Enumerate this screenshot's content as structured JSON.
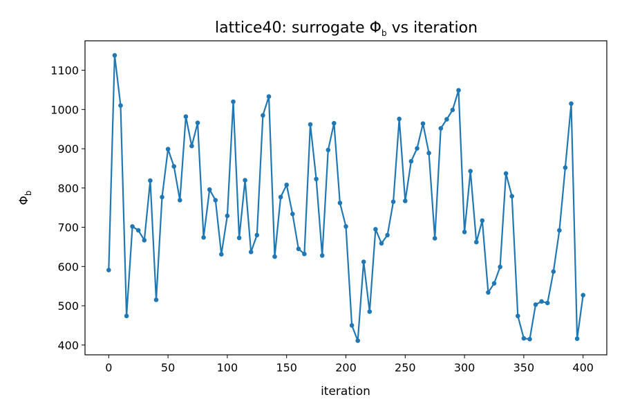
{
  "chart_data": {
    "type": "line",
    "title": {
      "prefix": "lattice40: surrogate ",
      "symbol": "Φ",
      "subscript": "b",
      "suffix": " vs iteration"
    },
    "xlabel": "iteration",
    "ylabel": {
      "symbol": "Φ",
      "subscript": "b"
    },
    "xlim": [
      -20,
      420
    ],
    "ylim": [
      375,
      1175
    ],
    "xticks": [
      0,
      50,
      100,
      150,
      200,
      250,
      300,
      350,
      400
    ],
    "yticks": [
      400,
      500,
      600,
      700,
      800,
      900,
      1000,
      1100
    ],
    "grid": false,
    "line_color": "#1f77b4",
    "marker": "circle",
    "x": [
      0,
      5,
      10,
      15,
      20,
      25,
      30,
      35,
      40,
      45,
      50,
      55,
      60,
      65,
      70,
      75,
      80,
      85,
      90,
      95,
      100,
      105,
      110,
      115,
      120,
      125,
      130,
      135,
      140,
      145,
      150,
      155,
      160,
      165,
      170,
      175,
      180,
      185,
      190,
      195,
      200,
      205,
      210,
      215,
      220,
      225,
      230,
      235,
      240,
      245,
      250,
      255,
      260,
      265,
      270,
      275,
      280,
      285,
      290,
      295,
      300,
      305,
      310,
      315,
      320,
      325,
      330,
      335,
      340,
      345,
      350,
      355,
      360,
      365,
      370,
      375,
      380,
      385,
      390,
      395,
      400
    ],
    "y": [
      591,
      1138,
      1010,
      474,
      702,
      692,
      667,
      819,
      515,
      777,
      899,
      855,
      769,
      982,
      907,
      966,
      674,
      796,
      769,
      631,
      729,
      1020,
      673,
      820,
      637,
      680,
      985,
      1033,
      625,
      777,
      808,
      734,
      645,
      632,
      962,
      823,
      628,
      897,
      965,
      762,
      702,
      450,
      411,
      612,
      485,
      695,
      659,
      680,
      765,
      976,
      767,
      868,
      901,
      964,
      889,
      672,
      952,
      975,
      999,
      1049,
      688,
      843,
      662,
      717,
      534,
      557,
      599,
      837,
      779,
      474,
      417,
      415,
      503,
      511,
      507,
      587,
      692,
      852,
      1015,
      416,
      527
    ]
  }
}
